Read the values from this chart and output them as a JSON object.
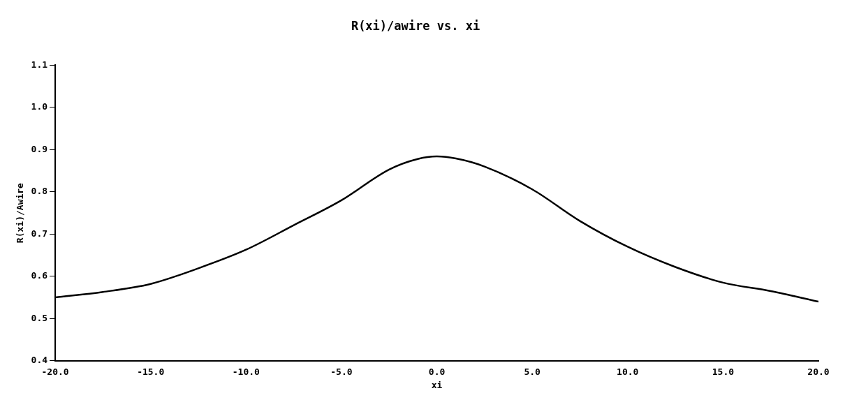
{
  "chart_data": {
    "type": "line",
    "title": "R(xi)/awire vs. xi",
    "xlabel": "xi",
    "ylabel": "R(xi)/Awire",
    "x": [
      -20,
      -17.5,
      -15,
      -12.5,
      -10,
      -7.5,
      -5,
      -2.5,
      -1,
      0,
      1,
      2.5,
      5,
      7.5,
      10,
      12.5,
      15,
      17.5,
      20
    ],
    "series": [
      {
        "color": "#000000",
        "values": [
          0.55,
          0.563,
          0.582,
          0.619,
          0.663,
          0.721,
          0.78,
          0.853,
          0.878,
          0.884,
          0.879,
          0.86,
          0.806,
          0.731,
          0.67,
          0.622,
          0.585,
          0.565,
          0.54
        ]
      }
    ],
    "xlim": [
      -20,
      20
    ],
    "xticks": [
      {
        "value": -20,
        "label": "-20.0"
      },
      {
        "value": -15,
        "label": "-15.0"
      },
      {
        "value": -10,
        "label": "-10.0"
      },
      {
        "value": -5,
        "label": "-5.0"
      },
      {
        "value": 0,
        "label": "0.0"
      },
      {
        "value": 5,
        "label": "5.0"
      },
      {
        "value": 10,
        "label": "10.0"
      },
      {
        "value": 15,
        "label": "15.0"
      },
      {
        "value": 20,
        "label": "20.0"
      }
    ],
    "ylim": [
      0.4,
      1.1
    ],
    "yticks": [
      0.4,
      0.5,
      0.6,
      0.7,
      0.8,
      0.9,
      {
        "value": 1,
        "label": "1.0"
      },
      1.1
    ],
    "grid": false,
    "legend": false,
    "marker": "none",
    "line_style": "solid"
  }
}
